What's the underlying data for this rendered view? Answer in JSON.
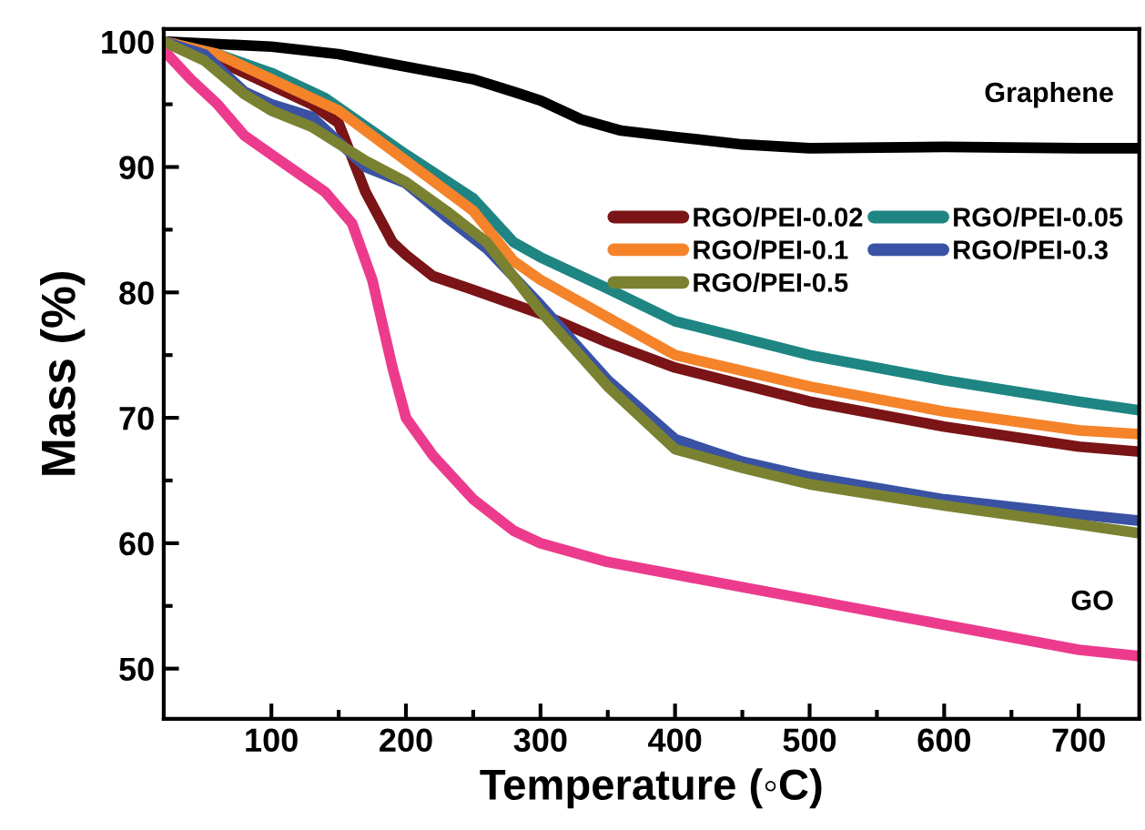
{
  "chart_data": {
    "type": "line",
    "xlabel": "Temperature (◦C)",
    "ylabel": "Mass (%)",
    "xlim": [
      20,
      745
    ],
    "ylim": [
      46,
      101
    ],
    "xticks": [
      100,
      200,
      300,
      400,
      500,
      600,
      700
    ],
    "yticks": [
      50,
      60,
      70,
      80,
      90,
      100
    ],
    "grid": false,
    "legend": "top right",
    "marker": "none",
    "line_style": "solid",
    "annotations": [
      "Graphene",
      "GO"
    ],
    "series": [
      {
        "color": "#000000",
        "x": [
          20,
          100,
          150,
          200,
          250,
          280,
          300,
          330,
          360,
          400,
          450,
          500,
          600,
          700,
          745
        ],
        "values": [
          100,
          99.6,
          99,
          98,
          97,
          96,
          95.3,
          93.8,
          92.9,
          92.4,
          91.8,
          91.5,
          91.6,
          91.5,
          91.5
        ]
      },
      {
        "color": "#ec3b8d",
        "x": [
          20,
          40,
          60,
          80,
          100,
          120,
          140,
          160,
          175,
          190,
          200,
          220,
          250,
          280,
          300,
          350,
          400,
          500,
          600,
          700,
          745
        ],
        "values": [
          99.3,
          97,
          95,
          92.5,
          91,
          89.5,
          88,
          85.5,
          81,
          74,
          70,
          67,
          63.5,
          61,
          60,
          58.5,
          57.5,
          55.5,
          53.5,
          51.5,
          51
        ]
      },
      {
        "name": "RGO/PEI-0.02",
        "color": "#7a1416",
        "x": [
          20,
          50,
          100,
          130,
          150,
          170,
          190,
          200,
          220,
          250,
          300,
          350,
          400,
          500,
          600,
          700,
          745
        ],
        "values": [
          100,
          99,
          96.5,
          95,
          93.5,
          88,
          84,
          83,
          81.3,
          80.2,
          78.3,
          76,
          74,
          71.3,
          69.3,
          67.7,
          67.3
        ]
      },
      {
        "name": "RGO/PEI-0.05",
        "color": "#1e8583",
        "x": [
          20,
          60,
          100,
          140,
          200,
          250,
          280,
          300,
          350,
          400,
          500,
          600,
          700,
          745
        ],
        "values": [
          100,
          99,
          97.5,
          95.5,
          91,
          87.5,
          84,
          82.8,
          80.3,
          77.7,
          75,
          73,
          71.3,
          70.6
        ]
      },
      {
        "name": "RGO/PEI-0.1",
        "color": "#f5832a",
        "x": [
          20,
          60,
          100,
          150,
          200,
          250,
          280,
          300,
          350,
          400,
          500,
          600,
          700,
          745
        ],
        "values": [
          100,
          99,
          97,
          94.5,
          90.5,
          86.5,
          82.5,
          81,
          78,
          75,
          72.5,
          70.5,
          69,
          68.7
        ]
      },
      {
        "name": "RGO/PEI-0.3",
        "color": "#3a52a3",
        "x": [
          20,
          50,
          80,
          100,
          130,
          170,
          200,
          230,
          260,
          300,
          350,
          400,
          450,
          500,
          600,
          700,
          745
        ],
        "values": [
          100,
          99,
          96,
          95,
          94,
          90,
          88.7,
          86,
          83.5,
          79,
          73,
          68.3,
          66.5,
          65.3,
          63.5,
          62.3,
          61.8
        ]
      },
      {
        "name": "RGO/PEI-0.5",
        "color": "#7a8232",
        "x": [
          20,
          50,
          80,
          100,
          130,
          170,
          200,
          230,
          260,
          300,
          350,
          400,
          450,
          500,
          600,
          700,
          745
        ],
        "values": [
          100,
          98.5,
          95.8,
          94.5,
          93.2,
          90.5,
          88.8,
          86.5,
          84,
          78.5,
          72.5,
          67.5,
          66,
          64.7,
          63,
          61.5,
          60.8
        ]
      }
    ]
  }
}
